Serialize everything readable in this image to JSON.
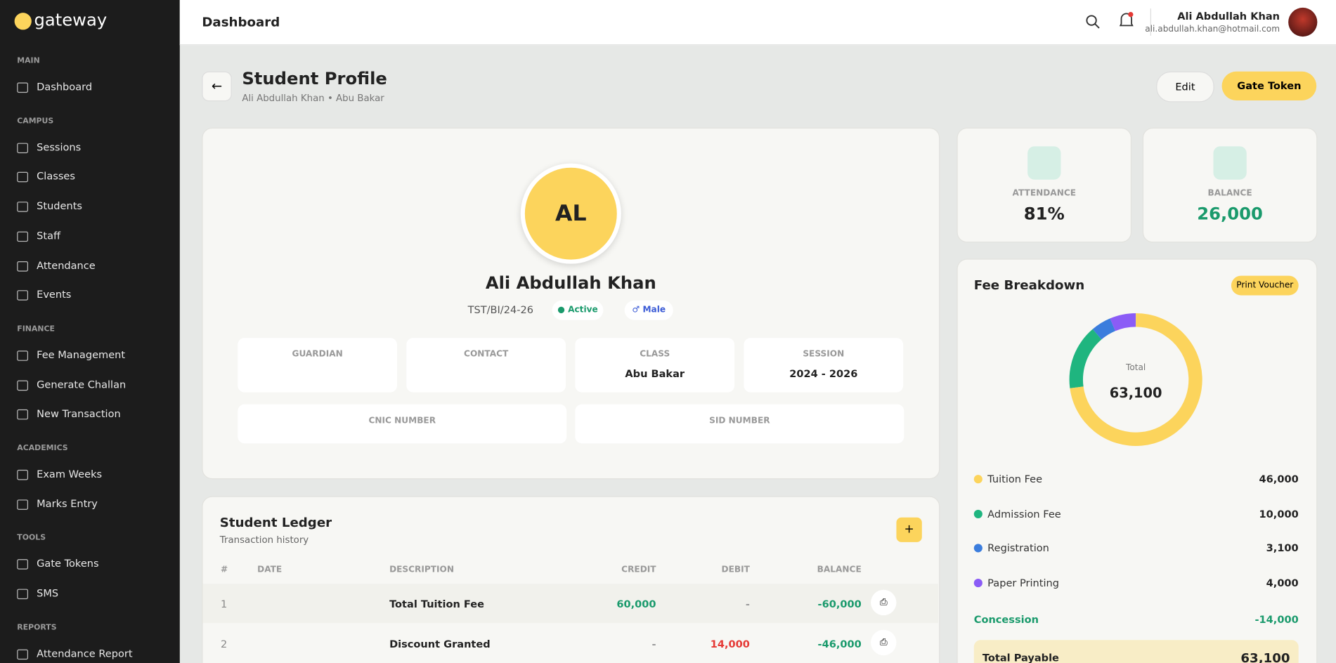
{
  "brand": "gateway",
  "sidebar": {
    "sections": [
      {
        "title": "MAIN",
        "items": [
          "Dashboard"
        ]
      },
      {
        "title": "CAMPUS",
        "items": [
          "Sessions",
          "Classes",
          "Students",
          "Staff",
          "Attendance",
          "Events"
        ]
      },
      {
        "title": "FINANCE",
        "items": [
          "Fee Management",
          "Generate Challan",
          "New Transaction"
        ]
      },
      {
        "title": "ACADEMICS",
        "items": [
          "Exam Weeks",
          "Marks Entry"
        ]
      },
      {
        "title": "TOOLS",
        "items": [
          "Gate Tokens",
          "SMS"
        ]
      },
      {
        "title": "REPORTS",
        "items": [
          "Attendance Report"
        ]
      }
    ]
  },
  "topbar": {
    "title": "Dashboard",
    "user_name": "Ali Abdullah Khan",
    "user_email": "ali.abdullah.khan@hotmail.com"
  },
  "header": {
    "title": "Student Profile",
    "subtitle": "Ali Abdullah Khan • Abu Bakar",
    "edit": "Edit",
    "gate_token": "Gate Token"
  },
  "profile": {
    "initials": "AL",
    "name": "Ali Abdullah Khan",
    "id": "TST/BI/24-26",
    "status": "Active",
    "gender": "Male",
    "fields": [
      {
        "label": "GUARDIAN"
      },
      {
        "label": "CONTACT"
      },
      {
        "label": "CLASS",
        "value": "Abu Bakar"
      },
      {
        "label": "SESSION",
        "value": "2024 - 2026"
      }
    ],
    "ids": [
      {
        "label": "CNIC NUMBER"
      },
      {
        "label": "SID NUMBER"
      }
    ]
  },
  "stats": [
    {
      "label": "ATTENDANCE",
      "value": "81%"
    },
    {
      "label": "BALANCE",
      "value": "26,000"
    }
  ],
  "fee_breakdown": {
    "title": "Fee Breakdown",
    "button": "Print Voucher",
    "total_label": "Total",
    "total": "63,100",
    "items": [
      {
        "name": "Tuition Fee",
        "amount": 46000,
        "label": "46,000",
        "color": "#fcd45c"
      },
      {
        "name": "Admission Fee",
        "amount": 10000,
        "label": "10,000",
        "color": "#1fb57f"
      },
      {
        "name": "Registration",
        "amount": 3100,
        "label": "3,100",
        "color": "#3b7ddd"
      },
      {
        "name": "Paper Printing",
        "amount": 4000,
        "label": "4,000",
        "color": "#8b5cf6"
      }
    ],
    "concession": {
      "name": "Concession",
      "value": "-14,000"
    },
    "total_payable": {
      "name": "Total Payable",
      "value": "63,100"
    }
  },
  "ledger": {
    "title": "Student Ledger",
    "subtitle": "Transaction history",
    "button": "+",
    "columns": [
      "#",
      "DATE",
      "DESCRIPTION",
      "CREDIT",
      "DEBIT",
      "BALANCE"
    ],
    "rows": [
      {
        "no": "1",
        "description": "Total Tuition Fee",
        "credit": "60,000",
        "debit": "-",
        "balance": "-60,000"
      },
      {
        "no": "2",
        "description": "Discount Granted",
        "credit": "-",
        "debit": "14,000",
        "balance": "-46,000"
      }
    ]
  }
}
